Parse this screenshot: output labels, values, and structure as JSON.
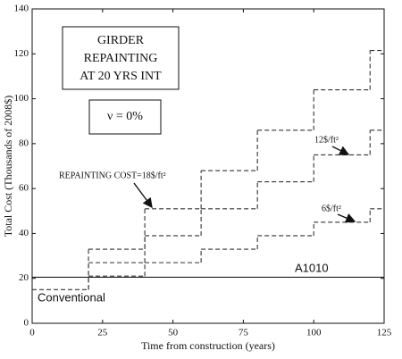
{
  "chart_data": {
    "type": "step",
    "xlabel": "Time from construction (years)",
    "ylabel": "Total Cost (Thousands of 2008$)",
    "boxes": [
      [
        "GIRDER",
        "REPAINTING",
        "AT 20 YRS INT"
      ],
      [
        "ν = 0%"
      ]
    ],
    "xlim": [
      0,
      125
    ],
    "xticks": [
      0,
      25,
      50,
      75,
      100,
      125
    ],
    "ylim": [
      0,
      140
    ],
    "yticks": [
      0,
      20,
      40,
      60,
      80,
      100,
      120,
      140
    ],
    "grid": false,
    "series": [
      {
        "name": "Conventional",
        "color": "#333333",
        "style": "dashed",
        "x": [
          0,
          20
        ],
        "values": [
          15,
          null
        ]
      },
      {
        "name": "A1010",
        "color": "#222222",
        "style": "solid",
        "x": [
          0,
          125
        ],
        "values": [
          20.5,
          null
        ]
      },
      {
        "name": "REPAINTING COST=18$/ft²",
        "color": "#333333",
        "style": "dashed",
        "x": [
          20,
          40,
          60,
          80,
          100,
          120,
          125
        ],
        "values": [
          33,
          51,
          68,
          86,
          104,
          121.5,
          null
        ]
      },
      {
        "name": "12$/ft²",
        "color": "#333333",
        "style": "dashed",
        "x": [
          20,
          40,
          60,
          80,
          100,
          120,
          125
        ],
        "values": [
          27,
          39,
          51,
          63,
          75,
          86,
          null
        ]
      },
      {
        "name": "6$/ft²",
        "color": "#333333",
        "style": "dashed",
        "x": [
          20,
          40,
          60,
          80,
          100,
          120,
          125
        ],
        "values": [
          21,
          27,
          33,
          39,
          45,
          51,
          null
        ]
      }
    ]
  }
}
